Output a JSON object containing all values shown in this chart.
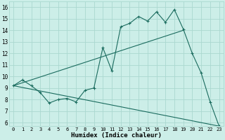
{
  "title": "",
  "xlabel": "Humidex (Indice chaleur)",
  "xlim": [
    -0.5,
    23.5
  ],
  "ylim": [
    5.7,
    16.5
  ],
  "yticks": [
    6,
    7,
    8,
    9,
    10,
    11,
    12,
    13,
    14,
    15,
    16
  ],
  "xticks": [
    0,
    1,
    2,
    3,
    4,
    5,
    6,
    7,
    8,
    9,
    10,
    11,
    12,
    13,
    14,
    15,
    16,
    17,
    18,
    19,
    20,
    21,
    22,
    23
  ],
  "bg_color": "#cceee8",
  "grid_color": "#aad8d0",
  "line_color": "#1a6b5e",
  "line1_x": [
    0,
    1,
    2,
    3,
    4,
    5,
    6,
    7,
    8,
    9,
    10,
    11,
    12,
    13,
    14,
    15,
    16,
    17,
    18,
    19,
    20,
    21,
    22,
    23
  ],
  "line1_y": [
    9.2,
    9.7,
    9.2,
    8.6,
    7.7,
    8.0,
    8.1,
    7.8,
    8.8,
    9.0,
    12.5,
    10.5,
    14.3,
    14.6,
    15.2,
    14.8,
    15.6,
    14.7,
    15.8,
    14.1,
    12.0,
    10.3,
    7.8,
    5.7
  ],
  "line2_x": [
    0,
    19
  ],
  "line2_y": [
    9.2,
    14.0
  ],
  "line3_x": [
    0,
    23
  ],
  "line3_y": [
    9.2,
    5.7
  ],
  "xlabel_fontsize": 6.5,
  "tick_fontsize_x": 5.0,
  "tick_fontsize_y": 5.5
}
